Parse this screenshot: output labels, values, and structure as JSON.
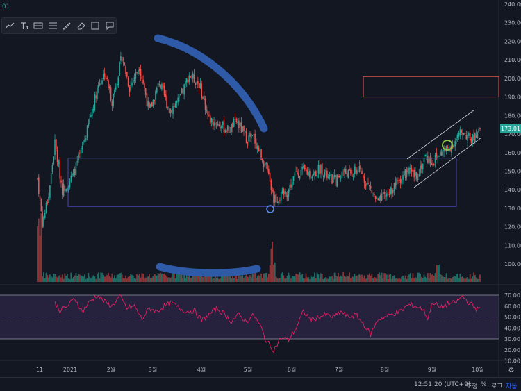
{
  "top_value": ".01",
  "toolbar": {
    "tools": [
      "trend-line-icon",
      "text-tool-icon",
      "pattern-icon",
      "fib-icon",
      "brush-icon",
      "eraser-icon",
      "rect-tool-icon",
      "comment-icon"
    ]
  },
  "footer": {
    "time": "12:51:20 (UTC+9)",
    "adjust": "조정",
    "percent": "%",
    "log": "로그",
    "auto": "자동"
  },
  "colors": {
    "up": "#26a69a",
    "down": "#ef5350",
    "background": "#131722",
    "rsi_line": "#e91e63",
    "rsi_band": "#7e57c2",
    "last_price_bg": "#26a69a",
    "drawing_blue": "#2f5aa8",
    "box_line": "#4a45b0",
    "red_box": "#ef5350"
  },
  "chart_data": {
    "type": "candlestick",
    "price_axis": {
      "ticks": [
        "240.00",
        "230.00",
        "220.00",
        "210.00",
        "200.00",
        "190.00",
        "180.00",
        "170.00",
        "160.00",
        "150.00",
        "140.00",
        "130.00",
        "120.00",
        "110.00",
        "100.00"
      ],
      "range": [
        85,
        242
      ],
      "last_price": "173.01"
    },
    "rsi_axis": {
      "ticks": [
        "70.00",
        "60.00",
        "50.00",
        "40.00",
        "30.00",
        "20.00",
        "10.00"
      ],
      "range": [
        0,
        75
      ],
      "band": [
        30,
        70
      ]
    },
    "x_axis": {
      "ticks": [
        "11",
        "2021",
        "2월",
        "3월",
        "4월",
        "5월",
        "6월",
        "7월",
        "8월",
        "9월",
        "10월"
      ]
    },
    "price_path_anchors": [
      [
        0,
        146
      ],
      [
        4,
        122
      ],
      [
        9,
        137
      ],
      [
        14,
        165
      ],
      [
        20,
        140
      ],
      [
        28,
        147
      ],
      [
        34,
        158
      ],
      [
        40,
        172
      ],
      [
        48,
        195
      ],
      [
        54,
        203
      ],
      [
        60,
        188
      ],
      [
        68,
        212
      ],
      [
        74,
        195
      ],
      [
        82,
        207
      ],
      [
        90,
        182
      ],
      [
        98,
        198
      ],
      [
        106,
        183
      ],
      [
        114,
        188
      ],
      [
        122,
        202
      ],
      [
        130,
        197
      ],
      [
        138,
        178
      ],
      [
        146,
        175
      ],
      [
        154,
        172
      ],
      [
        160,
        177
      ],
      [
        168,
        168
      ],
      [
        174,
        168
      ],
      [
        180,
        158
      ],
      [
        184,
        152
      ],
      [
        190,
        135
      ],
      [
        196,
        136
      ],
      [
        202,
        140
      ],
      [
        208,
        149
      ],
      [
        214,
        150
      ],
      [
        222,
        148
      ],
      [
        228,
        152
      ],
      [
        234,
        146
      ],
      [
        240,
        145
      ],
      [
        246,
        150
      ],
      [
        252,
        148
      ],
      [
        258,
        151
      ],
      [
        262,
        147
      ],
      [
        268,
        140
      ],
      [
        274,
        133
      ],
      [
        280,
        137
      ],
      [
        286,
        141
      ],
      [
        292,
        146
      ],
      [
        298,
        150
      ],
      [
        304,
        147
      ],
      [
        308,
        152
      ],
      [
        312,
        158
      ],
      [
        318,
        155
      ],
      [
        324,
        160
      ],
      [
        330,
        162
      ],
      [
        336,
        166
      ],
      [
        342,
        172
      ],
      [
        348,
        167
      ],
      [
        354,
        169
      ],
      [
        356,
        172
      ]
    ],
    "rsi_path_anchors": [
      [
        0,
        51
      ],
      [
        6,
        55
      ],
      [
        12,
        66
      ],
      [
        18,
        56
      ],
      [
        24,
        60
      ],
      [
        30,
        67
      ],
      [
        36,
        55
      ],
      [
        42,
        64
      ],
      [
        48,
        70
      ],
      [
        54,
        64
      ],
      [
        60,
        60
      ],
      [
        66,
        69
      ],
      [
        72,
        58
      ],
      [
        78,
        60
      ],
      [
        84,
        48
      ],
      [
        90,
        58
      ],
      [
        96,
        55
      ],
      [
        102,
        60
      ],
      [
        108,
        63
      ],
      [
        114,
        58
      ],
      [
        120,
        55
      ],
      [
        126,
        56
      ],
      [
        132,
        47
      ],
      [
        138,
        52
      ],
      [
        144,
        58
      ],
      [
        150,
        53
      ],
      [
        156,
        46
      ],
      [
        162,
        52
      ],
      [
        168,
        46
      ],
      [
        174,
        52
      ],
      [
        180,
        40
      ],
      [
        184,
        28
      ],
      [
        190,
        20
      ],
      [
        196,
        31
      ],
      [
        202,
        29
      ],
      [
        208,
        40
      ],
      [
        214,
        55
      ],
      [
        220,
        47
      ],
      [
        226,
        50
      ],
      [
        232,
        52
      ],
      [
        238,
        50
      ],
      [
        244,
        55
      ],
      [
        250,
        50
      ],
      [
        256,
        52
      ],
      [
        262,
        44
      ],
      [
        268,
        34
      ],
      [
        274,
        48
      ],
      [
        280,
        50
      ],
      [
        286,
        53
      ],
      [
        292,
        55
      ],
      [
        298,
        61
      ],
      [
        304,
        60
      ],
      [
        310,
        57
      ],
      [
        314,
        49
      ],
      [
        318,
        64
      ],
      [
        324,
        58
      ],
      [
        330,
        62
      ],
      [
        336,
        63
      ],
      [
        342,
        69
      ],
      [
        348,
        62
      ],
      [
        354,
        57
      ],
      [
        356,
        61
      ]
    ],
    "annotations": {
      "purple_range_box": [
        131,
        157
      ],
      "red_box": [
        190,
        201
      ]
    }
  }
}
